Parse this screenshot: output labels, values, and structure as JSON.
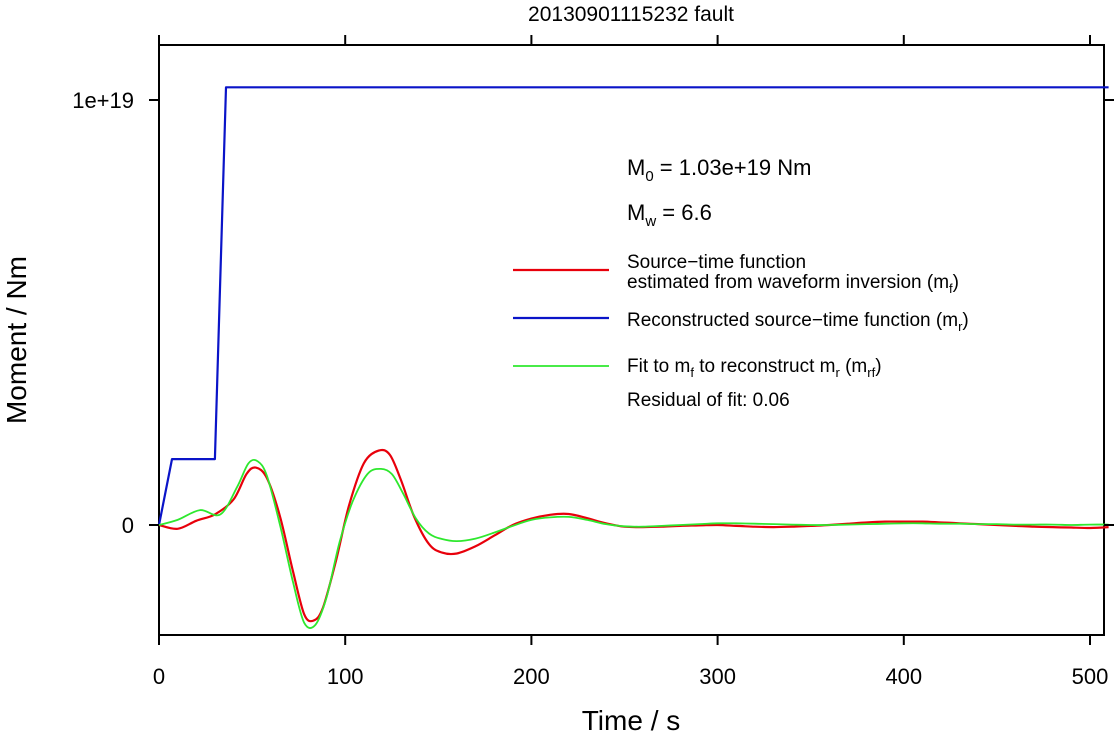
{
  "chart_data": {
    "type": "line",
    "title": "20130901115232 fault",
    "xlabel": "Time / s",
    "ylabel": "Moment / Nm",
    "xlim": [
      0,
      510
    ],
    "ylim": [
      -2.55e+18,
      1.13e+19
    ],
    "xticks": [
      {
        "value": 0,
        "label": "0"
      },
      {
        "value": 100,
        "label": "100"
      },
      {
        "value": 200,
        "label": "200"
      },
      {
        "value": 300,
        "label": "300"
      },
      {
        "value": 400,
        "label": "400"
      },
      {
        "value": 500,
        "label": "500"
      }
    ],
    "yticks": [
      {
        "value": 0,
        "label": "0"
      },
      {
        "value": 1e+19,
        "label": "1e+19"
      }
    ],
    "grid": false,
    "legend_position": "top-right",
    "annotations": {
      "m0": {
        "main": "M",
        "sub": "0",
        "rest": " = 1.03e+19 Nm"
      },
      "mw": {
        "main": "M",
        "sub": "w",
        "rest": " = 6.6"
      },
      "residual": "Residual of fit: 0.06"
    },
    "series": [
      {
        "key": "mf",
        "legend": {
          "line1": "Source−time function",
          "line2_pre": "estimated from waveform inversion (m",
          "line2_sub": "f",
          "line2_post": ")"
        },
        "color": "#e8000b",
        "width": 2.2,
        "x": [
          0,
          10,
          20,
          30,
          40,
          47,
          52,
          58,
          65,
          72,
          78,
          83,
          88,
          95,
          102,
          110,
          118,
          124,
          130,
          137,
          145,
          152,
          160,
          170,
          180,
          190,
          200,
          210,
          220,
          230,
          240,
          250,
          260,
          270,
          280,
          290,
          300,
          310,
          320,
          330,
          340,
          350,
          360,
          370,
          380,
          390,
          400,
          410,
          420,
          430,
          440,
          450,
          460,
          470,
          480,
          490,
          500,
          510
        ],
        "y": [
          0,
          -9e+16,
          1e+17,
          2.5e+17,
          6e+17,
          1.2e+18,
          1.35e+18,
          1.1e+18,
          2e+17,
          -1.1e+18,
          -2.1e+18,
          -2.25e+18,
          -1.95e+18,
          -8.5e+17,
          4.5e+17,
          1.45e+18,
          1.75e+18,
          1.65e+18,
          1.05e+18,
          2e+17,
          -4.5e+17,
          -6.5e+17,
          -6.7e+17,
          -5e+17,
          -2.5e+17,
          0.0,
          1.5e+17,
          2.4e+17,
          2.6e+17,
          1.6e+17,
          4e+16,
          -4e+16,
          -5e+16,
          -4e+16,
          -2e+16,
          -1e+16,
          0.0,
          -2e+16,
          -4e+16,
          -5e+16,
          -4e+16,
          -2e+16,
          0.0,
          3e+16,
          6e+16,
          8e+16,
          8e+16,
          8e+16,
          6e+16,
          4e+16,
          2e+16,
          0.0,
          -2e+16,
          -4e+16,
          -5e+16,
          -6e+16,
          -7e+16,
          -5e+16
        ]
      },
      {
        "key": "mr",
        "legend": {
          "line1": "Reconstructed source−time function (m",
          "line1_sub": "r",
          "line1_post": ")"
        },
        "color": "#0a14c8",
        "width": 2.2,
        "x": [
          0,
          7,
          30,
          36,
          510
        ],
        "y": [
          0,
          1.55e+18,
          1.55e+18,
          1.03e+19,
          1.03e+19
        ]
      },
      {
        "key": "mrf",
        "legend": {
          "line1_pre": "Fit to m",
          "sub1": "f",
          "mid": " to reconstruct m",
          "sub2": "r",
          "mid2": " (m",
          "sub3": "rf",
          "post": ")"
        },
        "color": "#2ee82e",
        "width": 1.8,
        "x": [
          0,
          10,
          22,
          33,
          42,
          48,
          53,
          58,
          65,
          72,
          78,
          84,
          90,
          97,
          104,
          112,
          119,
          125,
          131,
          138,
          145,
          152,
          160,
          170,
          180,
          190,
          200,
          210,
          220,
          230,
          240,
          250,
          260,
          270,
          280,
          290,
          300,
          310,
          320,
          330,
          340,
          350,
          360,
          370,
          380,
          390,
          400,
          410,
          420,
          430,
          440,
          450,
          460,
          470,
          480,
          490,
          500,
          510
        ],
        "y": [
          0,
          1.2e+17,
          3.5e+17,
          2.5e+17,
          9e+17,
          1.45e+18,
          1.5e+18,
          1.15e+18,
          0.0,
          -1.35e+18,
          -2.3e+18,
          -2.35e+18,
          -1.7e+18,
          -4e+17,
          5.5e+17,
          1.2e+18,
          1.32e+18,
          1.2e+18,
          7.5e+17,
          1.5e+17,
          -2e+17,
          -3.3e+17,
          -3.8e+17,
          -3.2e+17,
          -1.8e+17,
          -2e+16,
          1.2e+17,
          1.8e+17,
          1.9e+17,
          1.2e+17,
          2e+16,
          -3e+16,
          -4e+16,
          -2e+16,
          0.0,
          2e+16,
          4e+16,
          4e+16,
          3e+16,
          2e+16,
          1e+16,
          0.0,
          0.0,
          1e+16,
          2e+16,
          3e+16,
          4e+16,
          4e+16,
          3e+16,
          3e+16,
          2e+16,
          2e+16,
          1e+16,
          1e+16,
          1e+16,
          0.0,
          1e+16,
          1e+16
        ]
      }
    ]
  }
}
